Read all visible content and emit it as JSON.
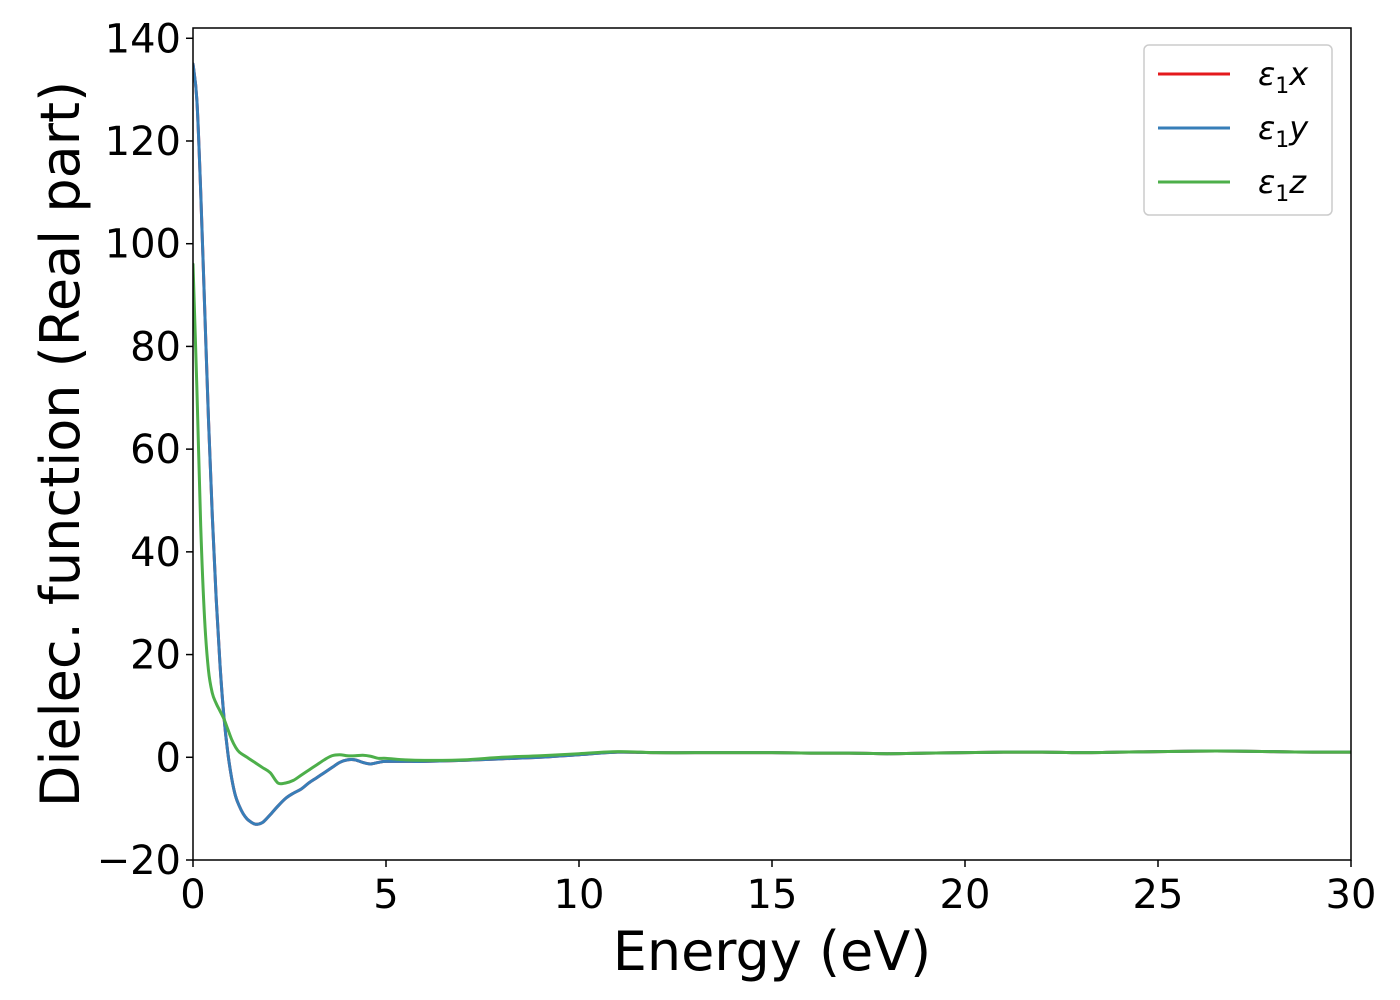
{
  "chart_data": {
    "type": "line",
    "xlabel": "Energy (eV)",
    "ylabel": "Dielec. function (Real part)",
    "xlim": [
      0,
      30
    ],
    "ylim": [
      -20,
      142
    ],
    "xticks": [
      0,
      5,
      10,
      15,
      20,
      25,
      30
    ],
    "xtick_labels": [
      "0",
      "5",
      "10",
      "15",
      "20",
      "25",
      "30"
    ],
    "yticks": [
      -20,
      0,
      20,
      40,
      60,
      80,
      100,
      120,
      140
    ],
    "ytick_labels": [
      "−20",
      "0",
      "20",
      "40",
      "60",
      "80",
      "100",
      "120",
      "140"
    ],
    "grid": false,
    "legend_position": "top-right",
    "series": [
      {
        "name": "ε₁x",
        "legend": {
          "symbol": "ε",
          "sub": "1",
          "axis": "x"
        },
        "color": "#e41a1c",
        "x": [
          0,
          0.1,
          0.2,
          0.3,
          0.4,
          0.5,
          0.6,
          0.7,
          0.8,
          0.9,
          1.0,
          1.1,
          1.2,
          1.3,
          1.4,
          1.5,
          1.6,
          1.7,
          1.8,
          1.9,
          2.0,
          2.2,
          2.4,
          2.6,
          2.8,
          3.0,
          3.2,
          3.4,
          3.6,
          3.8,
          4.0,
          4.2,
          4.4,
          4.6,
          4.8,
          5.0,
          5.5,
          6.0,
          7.0,
          8.0,
          9.0,
          10.0,
          11.0,
          12.0,
          13.0,
          14.0,
          15.0,
          16.0,
          17.0,
          18.0,
          19.0,
          20.0,
          21.0,
          22.0,
          23.0,
          24.0,
          25.0,
          26.0,
          27.0,
          28.0,
          29.0,
          30.0
        ],
        "y": [
          135,
          128,
          110,
          88,
          66,
          47,
          31,
          18,
          8,
          1,
          -4,
          -7.5,
          -9.5,
          -11,
          -12,
          -12.6,
          -13,
          -13,
          -12.7,
          -12,
          -11.2,
          -9.5,
          -8,
          -7,
          -6.2,
          -5,
          -4,
          -3,
          -2,
          -1,
          -0.5,
          -0.5,
          -1,
          -1.3,
          -1,
          -0.8,
          -0.8,
          -0.8,
          -0.6,
          -0.3,
          0,
          0.5,
          1.0,
          0.9,
          0.9,
          0.9,
          0.9,
          0.8,
          0.8,
          0.7,
          0.8,
          0.9,
          1.0,
          1.0,
          0.9,
          1.0,
          1.1,
          1.2,
          1.2,
          1.1,
          1.0,
          1.0
        ]
      },
      {
        "name": "ε₁y",
        "legend": {
          "symbol": "ε",
          "sub": "1",
          "axis": "y"
        },
        "color": "#377eb8",
        "x": [
          0,
          0.1,
          0.2,
          0.3,
          0.4,
          0.5,
          0.6,
          0.7,
          0.8,
          0.9,
          1.0,
          1.1,
          1.2,
          1.3,
          1.4,
          1.5,
          1.6,
          1.7,
          1.8,
          1.9,
          2.0,
          2.2,
          2.4,
          2.6,
          2.8,
          3.0,
          3.2,
          3.4,
          3.6,
          3.8,
          4.0,
          4.2,
          4.4,
          4.6,
          4.8,
          5.0,
          5.5,
          6.0,
          7.0,
          8.0,
          9.0,
          10.0,
          11.0,
          12.0,
          13.0,
          14.0,
          15.0,
          16.0,
          17.0,
          18.0,
          19.0,
          20.0,
          21.0,
          22.0,
          23.0,
          24.0,
          25.0,
          26.0,
          27.0,
          28.0,
          29.0,
          30.0
        ],
        "y": [
          135,
          128,
          110,
          88,
          66,
          47,
          31,
          18,
          8,
          1,
          -4,
          -7.5,
          -9.5,
          -11,
          -12,
          -12.6,
          -13,
          -13,
          -12.7,
          -12,
          -11.2,
          -9.5,
          -8,
          -7,
          -6.2,
          -5,
          -4,
          -3,
          -2,
          -1,
          -0.5,
          -0.5,
          -1,
          -1.3,
          -1,
          -0.8,
          -0.8,
          -0.8,
          -0.6,
          -0.3,
          0,
          0.5,
          1.0,
          0.9,
          0.9,
          0.9,
          0.9,
          0.8,
          0.8,
          0.7,
          0.8,
          0.9,
          1.0,
          1.0,
          0.9,
          1.0,
          1.1,
          1.2,
          1.2,
          1.1,
          1.0,
          1.0
        ]
      },
      {
        "name": "ε₁z",
        "legend": {
          "symbol": "ε",
          "sub": "1",
          "axis": "z"
        },
        "color": "#4daf4a",
        "x": [
          0,
          0.1,
          0.2,
          0.3,
          0.4,
          0.5,
          0.6,
          0.7,
          0.8,
          0.9,
          1.0,
          1.1,
          1.2,
          1.4,
          1.6,
          1.8,
          2.0,
          2.2,
          2.4,
          2.6,
          2.8,
          3.0,
          3.2,
          3.4,
          3.6,
          3.8,
          4.0,
          4.2,
          4.4,
          4.6,
          4.8,
          5.0,
          5.5,
          6.0,
          7.0,
          8.0,
          9.0,
          10.0,
          11.0,
          12.0,
          13.0,
          14.0,
          15.0,
          16.0,
          17.0,
          18.0,
          19.0,
          20.0,
          21.0,
          22.0,
          23.0,
          24.0,
          25.0,
          26.0,
          27.0,
          28.0,
          29.0,
          30.0
        ],
        "y": [
          96,
          72,
          45,
          27,
          17,
          12.5,
          10.5,
          9,
          7.5,
          5.5,
          3.5,
          2,
          1,
          0,
          -1,
          -2,
          -3,
          -5,
          -5,
          -4.5,
          -3.5,
          -2.5,
          -1.5,
          -0.5,
          0.3,
          0.5,
          0.3,
          0.3,
          0.4,
          0.2,
          -0.2,
          -0.2,
          -0.5,
          -0.6,
          -0.5,
          0,
          0.3,
          0.7,
          1.1,
          0.9,
          0.9,
          0.9,
          0.9,
          0.8,
          0.8,
          0.7,
          0.8,
          0.9,
          1.0,
          1.0,
          0.9,
          1.0,
          1.1,
          1.2,
          1.2,
          1.1,
          1.0,
          1.0
        ]
      }
    ]
  }
}
